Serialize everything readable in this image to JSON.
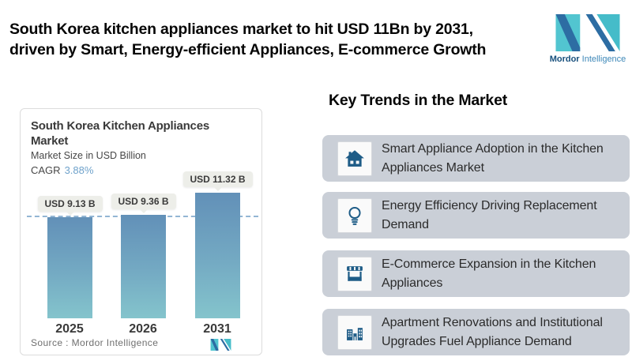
{
  "header": {
    "title_line1": "South Korea kitchen appliances market to hit USD 11Bn by 2031,",
    "title_line2": "driven by Smart, Energy-efficient Appliances, E-commerce Growth",
    "brand": {
      "name_bold": "Mordor",
      "name_light": "Intelligence"
    }
  },
  "chart_card": {
    "title_line1": "South Korea Kitchen Appliances",
    "title_line2": "Market",
    "subtitle": "Market Size in USD Billion",
    "cagr_label": "CAGR",
    "cagr_value": "3.88%",
    "source_text": "Source :  Mordor Intelligence"
  },
  "chart_data": {
    "type": "bar",
    "title": "South Korea Kitchen Appliances Market",
    "subtitle": "Market Size in USD Billion",
    "cagr": "3.88%",
    "unit": "USD Billion",
    "categories": [
      "2025",
      "2026",
      "2031"
    ],
    "values": [
      9.13,
      9.36,
      11.32
    ],
    "bar_labels": [
      "USD 9.13 B",
      "USD 9.36 B",
      "USD 11.32 B"
    ],
    "reference_line": 9.13,
    "ylim": [
      0,
      11.32
    ],
    "grid": false,
    "legend": false,
    "bar_gradient": [
      "#6290b8",
      "#84c4cc"
    ],
    "source": "Mordor Intelligence"
  },
  "trends": {
    "heading": "Key Trends in the Market",
    "items": [
      {
        "icon": "house-icon",
        "line1": "Smart Appliance Adoption in the Kitchen",
        "line2": "Appliances Market"
      },
      {
        "icon": "lightbulb-icon",
        "line1": "Energy Efficiency Driving Replacement",
        "line2": "Demand"
      },
      {
        "icon": "storefront-icon",
        "line1": "E-Commerce Expansion in the Kitchen",
        "line2": "Appliances"
      },
      {
        "icon": "buildings-icon",
        "line1": "Apartment Renovations and Institutional",
        "line2": "Upgrades Fuel Appliance Demand"
      }
    ]
  },
  "colors": {
    "brand_teal": "#52c5d0",
    "brand_blue": "#2d6da3",
    "icon_blue": "#1e5c87",
    "cagr_blue": "#6fa2cb",
    "dashed_line": "#93b6d4",
    "trend_card_bg": "#cacfd7",
    "value_pill_bg": "#edeee9"
  }
}
